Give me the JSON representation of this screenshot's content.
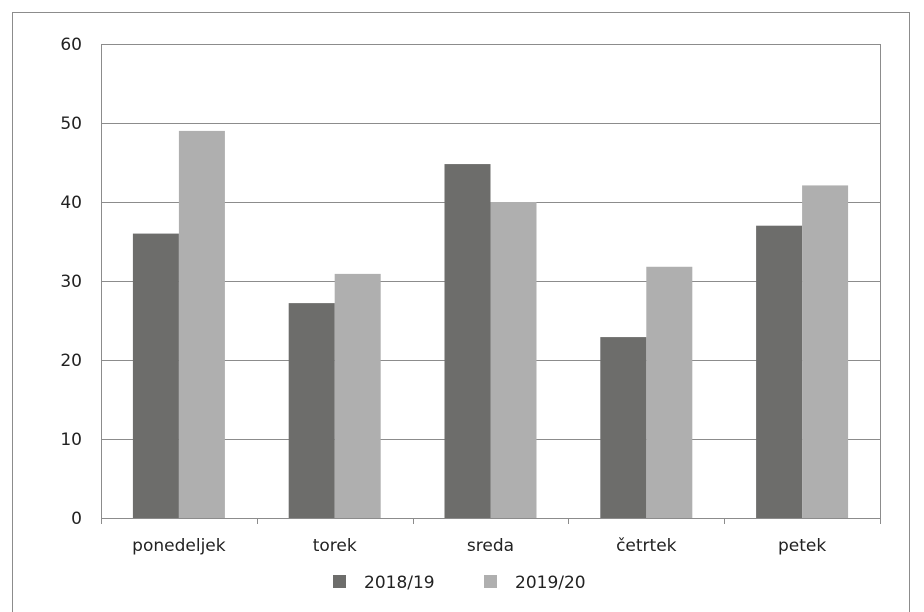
{
  "chart_data": {
    "type": "bar",
    "categories": [
      "ponedeljek",
      "torek",
      "sreda",
      "četrtek",
      "petek"
    ],
    "series": [
      {
        "name": "2018/19",
        "color": "#6d6d6b",
        "values": [
          36,
          27.2,
          44.8,
          22.9,
          37
        ]
      },
      {
        "name": "2019/20",
        "color": "#afafaf",
        "values": [
          49,
          30.9,
          40,
          31.8,
          42.1
        ]
      }
    ],
    "ylim": [
      0,
      60
    ],
    "yticks": [
      "0",
      "10",
      "20",
      "30",
      "40",
      "50",
      "60"
    ],
    "grid": true,
    "legend_position": "bottom",
    "title": "",
    "xlabel": "",
    "ylabel": ""
  }
}
